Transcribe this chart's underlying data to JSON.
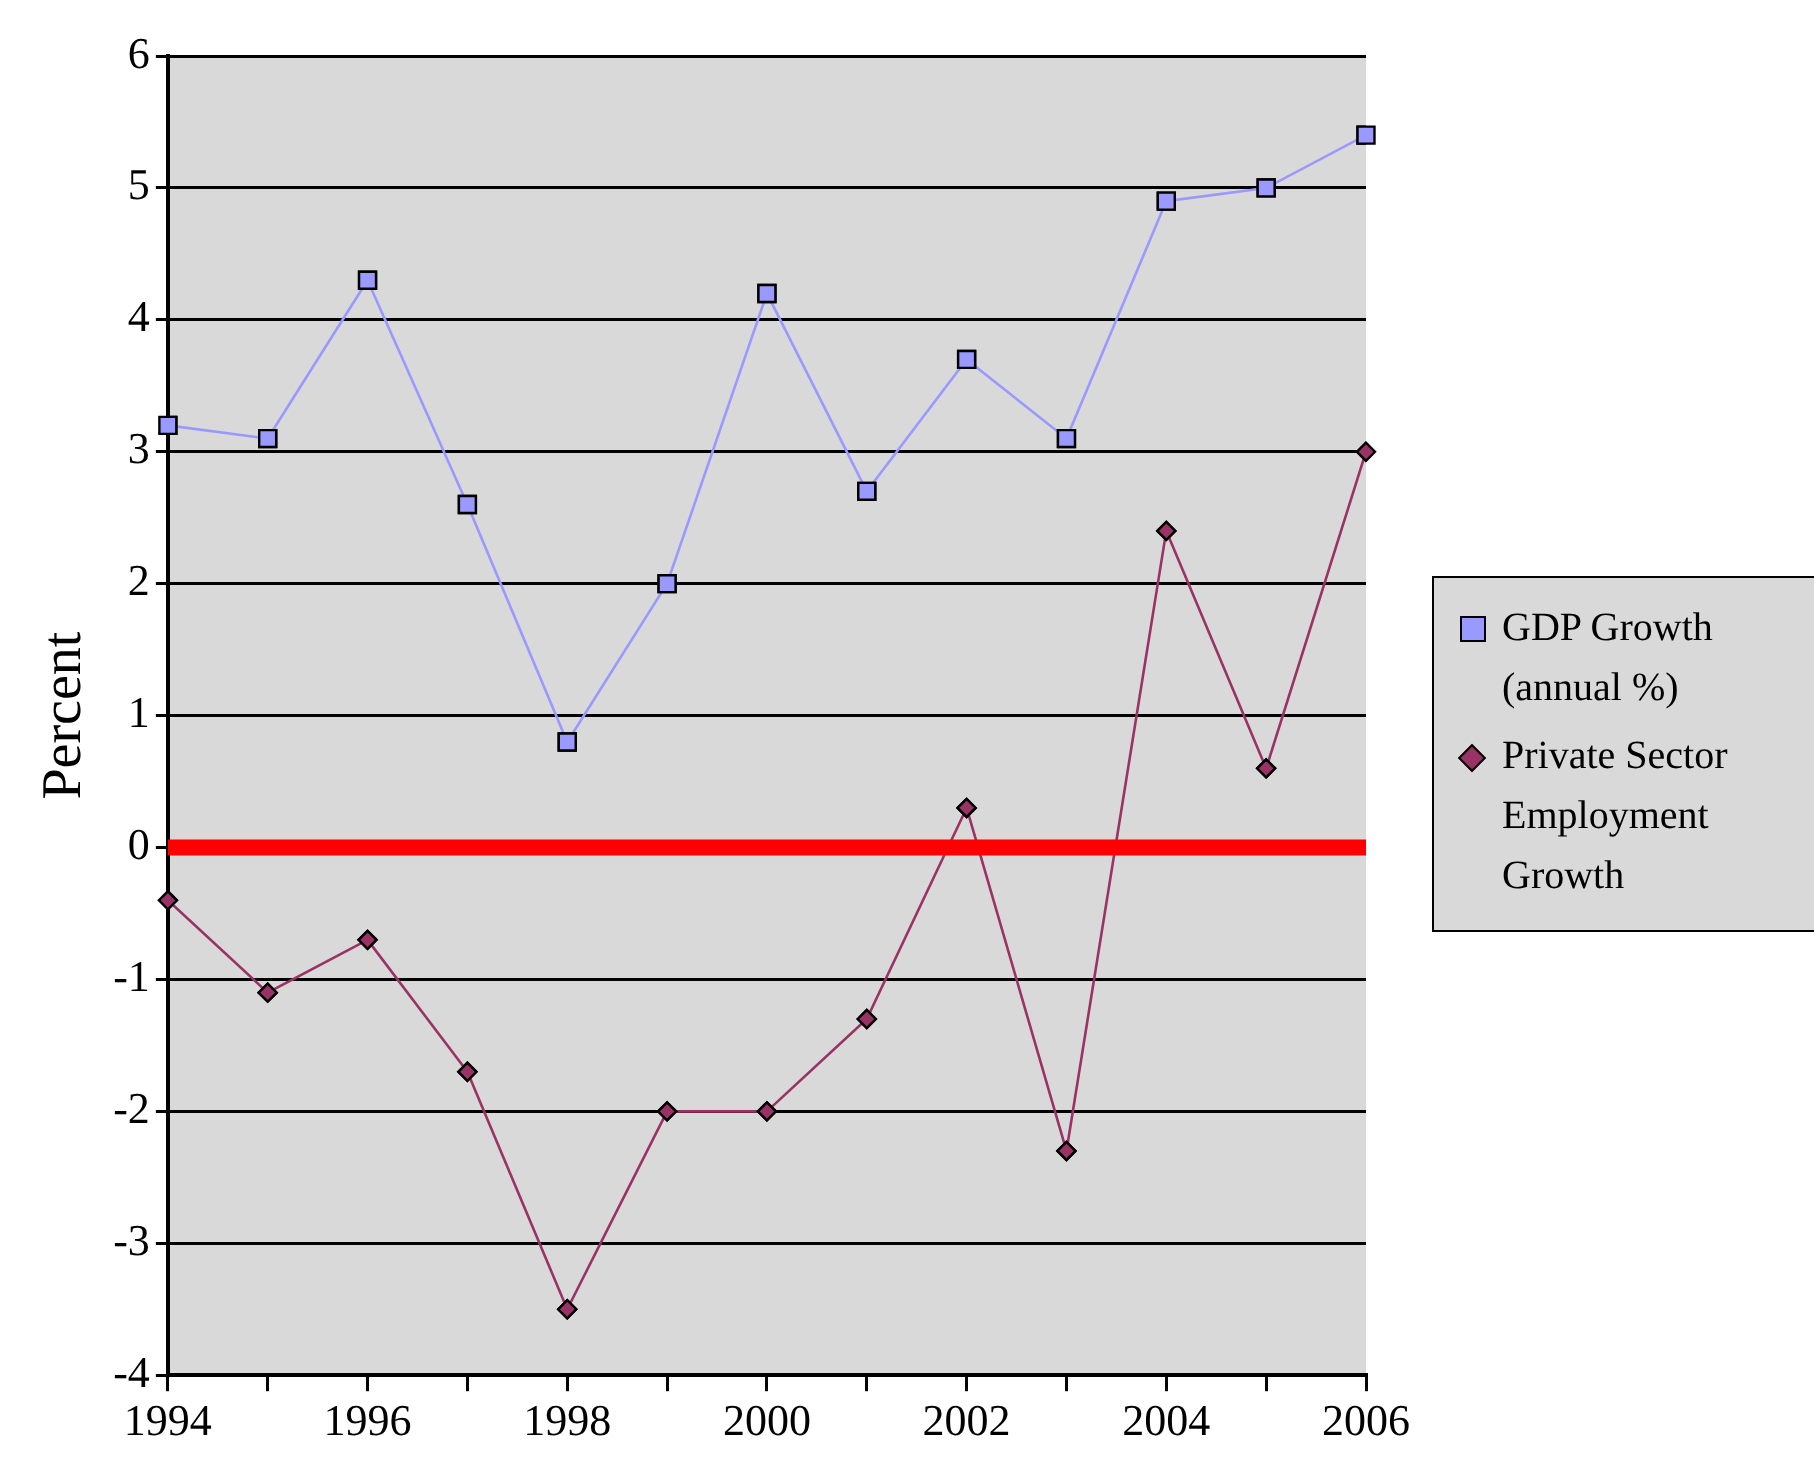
{
  "chart_data": {
    "type": "line",
    "ylabel": "Percent",
    "x": [
      1994,
      1995,
      1996,
      1997,
      1998,
      1999,
      2000,
      2001,
      2002,
      2003,
      2004,
      2005,
      2006
    ],
    "series": [
      {
        "name": "GDP Growth (annual %)",
        "color": "#9999ff",
        "marker": "square",
        "values": [
          3.2,
          3.1,
          4.3,
          2.6,
          0.8,
          2.0,
          4.2,
          2.7,
          3.7,
          3.1,
          4.9,
          5.0,
          5.4
        ]
      },
      {
        "name": "Private Sector Employment Growth",
        "color": "#993366",
        "marker": "diamond",
        "values": [
          -0.4,
          -1.1,
          -0.7,
          -1.7,
          -3.5,
          -2.0,
          -2.0,
          -1.3,
          0.3,
          -2.3,
          2.4,
          0.6,
          3.0
        ]
      }
    ],
    "xlim": [
      1994,
      2006
    ],
    "xticks": [
      1994,
      {
        "value": 1995,
        "label": null
      },
      1996,
      {
        "value": 1997,
        "label": null
      },
      1998,
      {
        "value": 1999,
        "label": null
      },
      2000,
      {
        "value": 2001,
        "label": null
      },
      2002,
      {
        "value": 2003,
        "label": null
      },
      2004,
      {
        "value": 2005,
        "label": null
      },
      2006
    ],
    "ylim": [
      -4,
      6
    ],
    "yticks": [
      -4,
      -3,
      -2,
      -1,
      0,
      1,
      2,
      3,
      4,
      5,
      6
    ],
    "ref_lines": [
      {
        "axis": "y",
        "value": 0,
        "color": "#ff0000"
      }
    ],
    "grid": "y",
    "legend": "right",
    "line_style": "solid"
  }
}
